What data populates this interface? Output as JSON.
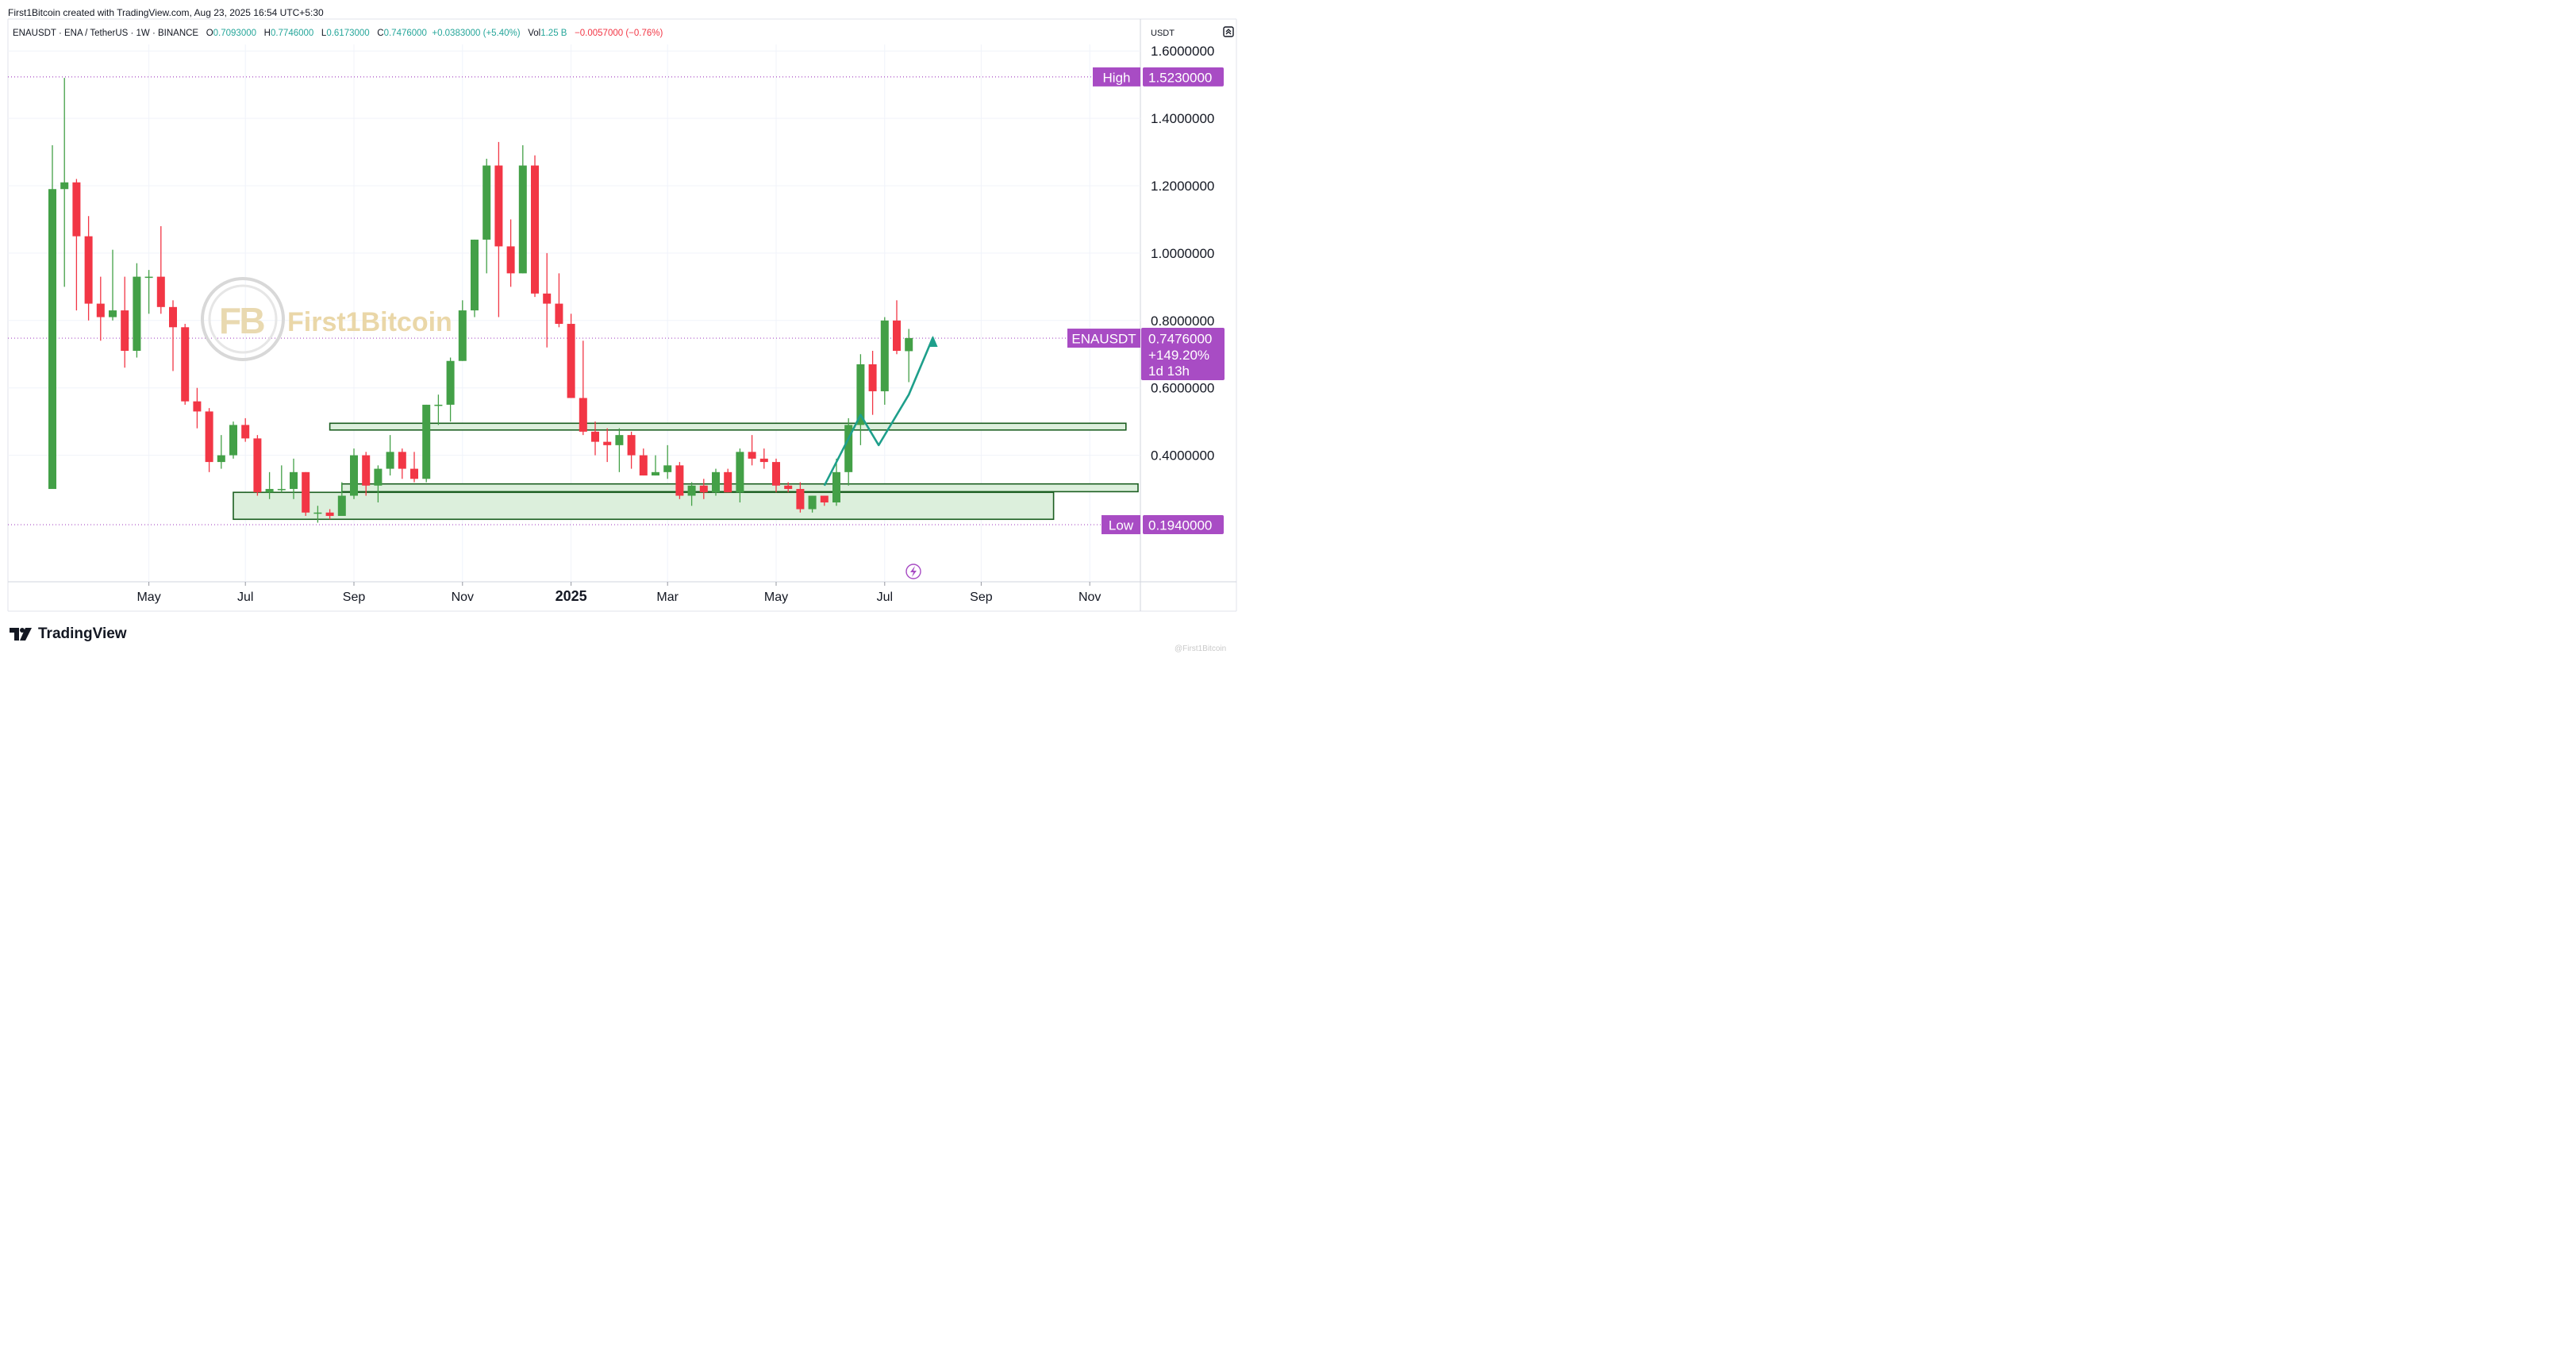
{
  "header": {
    "attribution": "First1Bitcoin created with TradingView.com, Aug 23, 2025 16:54 UTC+5:30"
  },
  "symbol_line": {
    "symbol": "ENAUSDT · ENA / TetherUS · 1W · BINANCE",
    "open_label": "O",
    "open_value": "0.7093000",
    "high_label": "H",
    "high_value": "0.7746000",
    "low_label": "L",
    "low_value": "0.6173000",
    "close_label": "C",
    "close_value": "0.7476000",
    "change": "+0.0383000 (+5.40%)",
    "vol_label": "Vol",
    "vol_value": "1.25 B",
    "vol_change": "−0.0057000 (−0.76%)"
  },
  "axis_unit": "USDT",
  "footer": {
    "brand": "TradingView",
    "watermark": "@First1Bitcoin"
  },
  "colors": {
    "up": "#43a047",
    "down": "#f23645",
    "badge": "#a84cc4",
    "grid": "#f0f3fa",
    "zone_fill": "#dcefdc",
    "zone_stroke": "#1b5e20",
    "projection": "#1e9f8b",
    "ohlc_green": "#26a69a"
  },
  "chart_data": {
    "type": "candlestick",
    "title": "ENAUSDT · ENA / TetherUS · 1W · BINANCE",
    "ylabel": "USDT",
    "ylim": [
      0.0,
      1.6
    ],
    "y_ticks": [
      "1.6000000",
      "1.4000000",
      "1.2000000",
      "1.0000000",
      "0.8000000",
      "0.6000000",
      "0.4000000"
    ],
    "x_ticks": [
      "May",
      "Jul",
      "Sep",
      "Nov",
      "2025",
      "Mar",
      "May",
      "Jul",
      "Sep",
      "Nov"
    ],
    "x_tick_weeks": [
      8,
      16,
      25,
      34,
      43,
      51,
      60,
      69,
      77,
      86
    ],
    "candles": [
      {
        "o": 0.3,
        "h": 1.32,
        "l": 0.3,
        "c": 1.19
      },
      {
        "o": 1.19,
        "h": 1.52,
        "l": 0.9,
        "c": 1.21
      },
      {
        "o": 1.21,
        "h": 1.22,
        "l": 0.83,
        "c": 1.05
      },
      {
        "o": 1.05,
        "h": 1.11,
        "l": 0.8,
        "c": 0.85
      },
      {
        "o": 0.85,
        "h": 0.93,
        "l": 0.74,
        "c": 0.81
      },
      {
        "o": 0.81,
        "h": 1.01,
        "l": 0.8,
        "c": 0.83
      },
      {
        "o": 0.83,
        "h": 0.93,
        "l": 0.66,
        "c": 0.71
      },
      {
        "o": 0.71,
        "h": 0.97,
        "l": 0.69,
        "c": 0.93
      },
      {
        "o": 0.93,
        "h": 0.95,
        "l": 0.82,
        "c": 0.93
      },
      {
        "o": 0.93,
        "h": 1.08,
        "l": 0.82,
        "c": 0.84
      },
      {
        "o": 0.84,
        "h": 0.86,
        "l": 0.65,
        "c": 0.78
      },
      {
        "o": 0.78,
        "h": 0.79,
        "l": 0.55,
        "c": 0.56
      },
      {
        "o": 0.56,
        "h": 0.6,
        "l": 0.48,
        "c": 0.53
      },
      {
        "o": 0.53,
        "h": 0.54,
        "l": 0.35,
        "c": 0.38
      },
      {
        "o": 0.38,
        "h": 0.46,
        "l": 0.36,
        "c": 0.4
      },
      {
        "o": 0.4,
        "h": 0.5,
        "l": 0.39,
        "c": 0.49
      },
      {
        "o": 0.49,
        "h": 0.51,
        "l": 0.44,
        "c": 0.45
      },
      {
        "o": 0.45,
        "h": 0.46,
        "l": 0.28,
        "c": 0.29
      },
      {
        "o": 0.29,
        "h": 0.35,
        "l": 0.27,
        "c": 0.3
      },
      {
        "o": 0.3,
        "h": 0.37,
        "l": 0.29,
        "c": 0.3
      },
      {
        "o": 0.3,
        "h": 0.39,
        "l": 0.27,
        "c": 0.35
      },
      {
        "o": 0.35,
        "h": 0.35,
        "l": 0.22,
        "c": 0.23
      },
      {
        "o": 0.23,
        "h": 0.25,
        "l": 0.2,
        "c": 0.23
      },
      {
        "o": 0.23,
        "h": 0.24,
        "l": 0.21,
        "c": 0.22
      },
      {
        "o": 0.22,
        "h": 0.32,
        "l": 0.22,
        "c": 0.28
      },
      {
        "o": 0.28,
        "h": 0.42,
        "l": 0.27,
        "c": 0.4
      },
      {
        "o": 0.4,
        "h": 0.41,
        "l": 0.28,
        "c": 0.31
      },
      {
        "o": 0.31,
        "h": 0.37,
        "l": 0.26,
        "c": 0.36
      },
      {
        "o": 0.36,
        "h": 0.46,
        "l": 0.34,
        "c": 0.41
      },
      {
        "o": 0.41,
        "h": 0.42,
        "l": 0.33,
        "c": 0.36
      },
      {
        "o": 0.36,
        "h": 0.41,
        "l": 0.32,
        "c": 0.33
      },
      {
        "o": 0.33,
        "h": 0.55,
        "l": 0.32,
        "c": 0.55
      },
      {
        "o": 0.55,
        "h": 0.58,
        "l": 0.49,
        "c": 0.55
      },
      {
        "o": 0.55,
        "h": 0.69,
        "l": 0.5,
        "c": 0.68
      },
      {
        "o": 0.68,
        "h": 0.86,
        "l": 0.68,
        "c": 0.83
      },
      {
        "o": 0.83,
        "h": 1.04,
        "l": 0.81,
        "c": 1.04
      },
      {
        "o": 1.04,
        "h": 1.28,
        "l": 0.94,
        "c": 1.26
      },
      {
        "o": 1.26,
        "h": 1.33,
        "l": 0.81,
        "c": 1.02
      },
      {
        "o": 1.02,
        "h": 1.1,
        "l": 0.9,
        "c": 0.94
      },
      {
        "o": 0.94,
        "h": 1.32,
        "l": 0.94,
        "c": 1.26
      },
      {
        "o": 1.26,
        "h": 1.29,
        "l": 0.87,
        "c": 0.88
      },
      {
        "o": 0.88,
        "h": 1.0,
        "l": 0.72,
        "c": 0.85
      },
      {
        "o": 0.85,
        "h": 0.94,
        "l": 0.78,
        "c": 0.79
      },
      {
        "o": 0.79,
        "h": 0.82,
        "l": 0.57,
        "c": 0.57
      },
      {
        "o": 0.57,
        "h": 0.74,
        "l": 0.46,
        "c": 0.47
      },
      {
        "o": 0.47,
        "h": 0.5,
        "l": 0.4,
        "c": 0.44
      },
      {
        "o": 0.44,
        "h": 0.48,
        "l": 0.38,
        "c": 0.43
      },
      {
        "o": 0.43,
        "h": 0.48,
        "l": 0.35,
        "c": 0.46
      },
      {
        "o": 0.46,
        "h": 0.47,
        "l": 0.36,
        "c": 0.4
      },
      {
        "o": 0.4,
        "h": 0.42,
        "l": 0.34,
        "c": 0.34
      },
      {
        "o": 0.34,
        "h": 0.4,
        "l": 0.34,
        "c": 0.35
      },
      {
        "o": 0.35,
        "h": 0.43,
        "l": 0.33,
        "c": 0.37
      },
      {
        "o": 0.37,
        "h": 0.38,
        "l": 0.27,
        "c": 0.28
      },
      {
        "o": 0.28,
        "h": 0.32,
        "l": 0.25,
        "c": 0.31
      },
      {
        "o": 0.31,
        "h": 0.33,
        "l": 0.27,
        "c": 0.29
      },
      {
        "o": 0.29,
        "h": 0.36,
        "l": 0.28,
        "c": 0.35
      },
      {
        "o": 0.35,
        "h": 0.36,
        "l": 0.29,
        "c": 0.29
      },
      {
        "o": 0.29,
        "h": 0.42,
        "l": 0.26,
        "c": 0.41
      },
      {
        "o": 0.41,
        "h": 0.46,
        "l": 0.37,
        "c": 0.39
      },
      {
        "o": 0.39,
        "h": 0.42,
        "l": 0.36,
        "c": 0.38
      },
      {
        "o": 0.38,
        "h": 0.39,
        "l": 0.29,
        "c": 0.31
      },
      {
        "o": 0.31,
        "h": 0.32,
        "l": 0.29,
        "c": 0.3
      },
      {
        "o": 0.3,
        "h": 0.32,
        "l": 0.23,
        "c": 0.24
      },
      {
        "o": 0.24,
        "h": 0.28,
        "l": 0.23,
        "c": 0.28
      },
      {
        "o": 0.28,
        "h": 0.28,
        "l": 0.25,
        "c": 0.26
      },
      {
        "o": 0.26,
        "h": 0.39,
        "l": 0.25,
        "c": 0.35
      },
      {
        "o": 0.35,
        "h": 0.51,
        "l": 0.31,
        "c": 0.49
      },
      {
        "o": 0.49,
        "h": 0.7,
        "l": 0.43,
        "c": 0.67
      },
      {
        "o": 0.67,
        "h": 0.71,
        "l": 0.52,
        "c": 0.59
      },
      {
        "o": 0.59,
        "h": 0.81,
        "l": 0.55,
        "c": 0.8
      },
      {
        "o": 0.8,
        "h": 0.86,
        "l": 0.7,
        "c": 0.71
      },
      {
        "o": 0.709,
        "h": 0.775,
        "l": 0.617,
        "c": 0.748
      }
    ],
    "zones": [
      {
        "from_week": 24,
        "to_week": 90,
        "top": 0.315,
        "bottom": 0.292
      },
      {
        "from_week": 23,
        "to_week": 89,
        "top": 0.495,
        "bottom": 0.475
      },
      {
        "from_week": 15,
        "to_week": 83,
        "top": 0.29,
        "bottom": 0.21
      }
    ],
    "projection_path": [
      {
        "week": 64,
        "price": 0.31
      },
      {
        "week": 67,
        "price": 0.52
      },
      {
        "week": 68.5,
        "price": 0.43
      },
      {
        "week": 71,
        "price": 0.58
      },
      {
        "week": 73,
        "price": 0.75
      }
    ],
    "levels": [
      {
        "label": "High",
        "value": "1.5230000",
        "price": 1.523
      },
      {
        "label": "Low",
        "value": "0.1940000",
        "price": 0.194
      }
    ],
    "current": {
      "symbol": "ENAUSDT",
      "price": "0.7476000",
      "change": "+149.20%",
      "countdown": "1d 13h",
      "value": 0.7476
    }
  }
}
